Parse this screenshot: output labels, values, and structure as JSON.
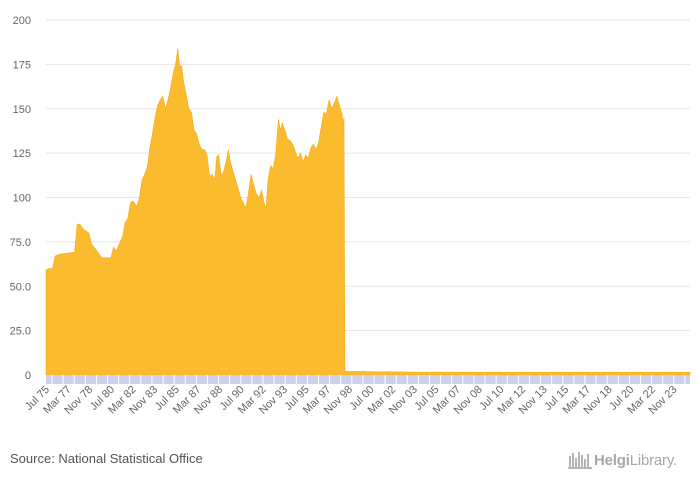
{
  "chart_data": {
    "type": "area",
    "color": "#fbbb2f",
    "axis_band_color": "#cdd1ec",
    "ylim": [
      0,
      200
    ],
    "yticks": [
      {
        "value": 0,
        "label": "0"
      },
      {
        "value": 25,
        "label": "25.0"
      },
      {
        "value": 50,
        "label": "50.0"
      },
      {
        "value": 75,
        "label": "75.0"
      },
      {
        "value": 100,
        "label": "100"
      },
      {
        "value": 125,
        "label": "125"
      },
      {
        "value": 150,
        "label": "150"
      },
      {
        "value": 175,
        "label": "175"
      },
      {
        "value": 200,
        "label": "200"
      }
    ],
    "xlim": [
      1975.5,
      2025.1
    ],
    "xticks": [
      {
        "value": 1975.5,
        "label": "Jul 75"
      },
      {
        "value": 1977.17,
        "label": "Mar 77"
      },
      {
        "value": 1978.83,
        "label": "Nov 78"
      },
      {
        "value": 1980.5,
        "label": "Jul 80"
      },
      {
        "value": 1982.17,
        "label": "Mar 82"
      },
      {
        "value": 1983.83,
        "label": "Nov 83"
      },
      {
        "value": 1985.5,
        "label": "Jul 85"
      },
      {
        "value": 1987.17,
        "label": "Mar 87"
      },
      {
        "value": 1988.83,
        "label": "Nov 88"
      },
      {
        "value": 1990.5,
        "label": "Jul 90"
      },
      {
        "value": 1992.17,
        "label": "Mar 92"
      },
      {
        "value": 1993.83,
        "label": "Nov 93"
      },
      {
        "value": 1995.5,
        "label": "Jul 95"
      },
      {
        "value": 1997.17,
        "label": "Mar 97"
      },
      {
        "value": 1998.83,
        "label": "Nov 98"
      },
      {
        "value": 2000.5,
        "label": "Jul 00"
      },
      {
        "value": 2002.17,
        "label": "Mar 02"
      },
      {
        "value": 2003.83,
        "label": "Nov 03"
      },
      {
        "value": 2005.5,
        "label": "Jul 05"
      },
      {
        "value": 2007.17,
        "label": "Mar 07"
      },
      {
        "value": 2008.83,
        "label": "Nov 08"
      },
      {
        "value": 2010.5,
        "label": "Jul 10"
      },
      {
        "value": 2012.17,
        "label": "Mar 12"
      },
      {
        "value": 2013.83,
        "label": "Nov 13"
      },
      {
        "value": 2015.5,
        "label": "Jul 15"
      },
      {
        "value": 2017.17,
        "label": "Mar 17"
      },
      {
        "value": 2018.83,
        "label": "Nov 18"
      },
      {
        "value": 2020.5,
        "label": "Jul 20"
      },
      {
        "value": 2022.17,
        "label": "Mar 22"
      },
      {
        "value": 2023.83,
        "label": "Nov 23"
      }
    ],
    "grid": true,
    "points": [
      [
        1975.5,
        59
      ],
      [
        1975.7,
        60
      ],
      [
        1976.0,
        60
      ],
      [
        1976.2,
        67
      ],
      [
        1976.5,
        68
      ],
      [
        1977.0,
        68.5
      ],
      [
        1977.5,
        69
      ],
      [
        1977.7,
        69
      ],
      [
        1977.9,
        85
      ],
      [
        1978.1,
        85
      ],
      [
        1978.4,
        82
      ],
      [
        1978.8,
        80
      ],
      [
        1979.0,
        74
      ],
      [
        1979.3,
        71
      ],
      [
        1979.6,
        68
      ],
      [
        1979.8,
        66
      ],
      [
        1980.2,
        66
      ],
      [
        1980.5,
        66
      ],
      [
        1980.7,
        72
      ],
      [
        1980.9,
        70
      ],
      [
        1981.1,
        73
      ],
      [
        1981.4,
        78
      ],
      [
        1981.6,
        86
      ],
      [
        1981.8,
        88
      ],
      [
        1982.0,
        97
      ],
      [
        1982.2,
        98
      ],
      [
        1982.5,
        95
      ],
      [
        1982.7,
        100
      ],
      [
        1982.9,
        110
      ],
      [
        1983.1,
        113
      ],
      [
        1983.3,
        117
      ],
      [
        1983.5,
        128
      ],
      [
        1983.7,
        136
      ],
      [
        1983.9,
        145
      ],
      [
        1984.1,
        152
      ],
      [
        1984.3,
        155
      ],
      [
        1984.5,
        157
      ],
      [
        1984.7,
        150
      ],
      [
        1984.9,
        155
      ],
      [
        1985.1,
        162
      ],
      [
        1985.3,
        170
      ],
      [
        1985.5,
        176
      ],
      [
        1985.65,
        184
      ],
      [
        1985.8,
        174
      ],
      [
        1985.95,
        174
      ],
      [
        1986.1,
        165
      ],
      [
        1986.3,
        158
      ],
      [
        1986.5,
        150
      ],
      [
        1986.7,
        148
      ],
      [
        1986.9,
        138
      ],
      [
        1987.1,
        136
      ],
      [
        1987.3,
        130
      ],
      [
        1987.5,
        127
      ],
      [
        1987.7,
        127
      ],
      [
        1987.9,
        124
      ],
      [
        1988.1,
        112
      ],
      [
        1988.3,
        113
      ],
      [
        1988.5,
        110
      ],
      [
        1988.65,
        123
      ],
      [
        1988.8,
        124
      ],
      [
        1989.0,
        112
      ],
      [
        1989.2,
        115
      ],
      [
        1989.4,
        121
      ],
      [
        1989.55,
        127
      ],
      [
        1989.7,
        120
      ],
      [
        1989.9,
        115
      ],
      [
        1990.1,
        110
      ],
      [
        1990.3,
        105
      ],
      [
        1990.5,
        100
      ],
      [
        1990.7,
        97
      ],
      [
        1990.9,
        94
      ],
      [
        1991.1,
        103
      ],
      [
        1991.3,
        113
      ],
      [
        1991.5,
        107
      ],
      [
        1991.7,
        102
      ],
      [
        1991.9,
        100
      ],
      [
        1992.1,
        104
      ],
      [
        1992.3,
        97
      ],
      [
        1992.45,
        94
      ],
      [
        1992.6,
        110
      ],
      [
        1992.8,
        118
      ],
      [
        1993.0,
        116
      ],
      [
        1993.2,
        125
      ],
      [
        1993.4,
        144
      ],
      [
        1993.55,
        138
      ],
      [
        1993.7,
        142
      ],
      [
        1993.9,
        138
      ],
      [
        1994.1,
        133
      ],
      [
        1994.3,
        132
      ],
      [
        1994.5,
        130
      ],
      [
        1994.7,
        126
      ],
      [
        1994.9,
        122
      ],
      [
        1995.1,
        125
      ],
      [
        1995.3,
        120
      ],
      [
        1995.5,
        124
      ],
      [
        1995.7,
        122
      ],
      [
        1995.9,
        128
      ],
      [
        1996.1,
        130
      ],
      [
        1996.3,
        127
      ],
      [
        1996.5,
        131
      ],
      [
        1996.7,
        140
      ],
      [
        1996.9,
        148
      ],
      [
        1997.1,
        147
      ],
      [
        1997.3,
        155
      ],
      [
        1997.5,
        150
      ],
      [
        1997.7,
        153
      ],
      [
        1997.9,
        157
      ],
      [
        1998.1,
        152
      ],
      [
        1998.3,
        147
      ],
      [
        1998.4,
        141
      ],
      [
        1998.45,
        145
      ],
      [
        1998.52,
        2
      ],
      [
        1999.0,
        2
      ],
      [
        2000.0,
        2
      ],
      [
        2001.0,
        1.8
      ],
      [
        2002.0,
        1.8
      ],
      [
        2004.0,
        1.6
      ],
      [
        2006.0,
        1.6
      ],
      [
        2008.0,
        1.5
      ],
      [
        2010.0,
        1.5
      ],
      [
        2012.0,
        1.5
      ],
      [
        2014.0,
        1.5
      ],
      [
        2016.0,
        1.5
      ],
      [
        2018.0,
        1.5
      ],
      [
        2020.0,
        1.5
      ],
      [
        2022.0,
        1.5
      ],
      [
        2024.0,
        1.5
      ],
      [
        2025.1,
        1.5
      ]
    ]
  },
  "footer": {
    "source": "Source: National Statistical Office",
    "logo_left": "Helgi",
    "logo_right": "Library",
    "logo_dot": "."
  }
}
